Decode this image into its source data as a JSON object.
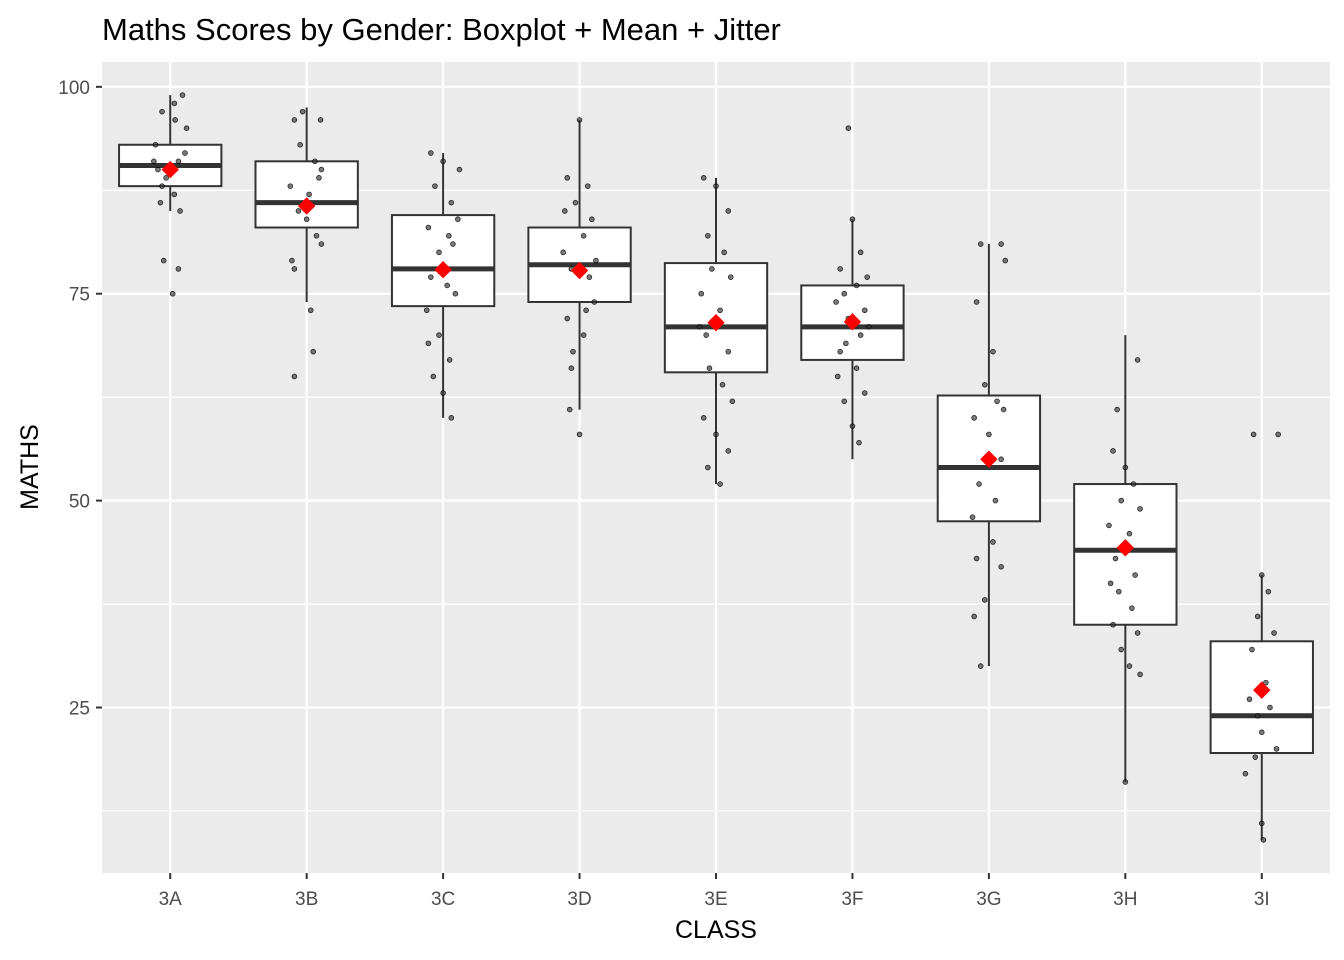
{
  "chart_data": {
    "type": "boxplot",
    "title": "Maths Scores by Gender: Boxplot + Mean + Jitter",
    "xlabel": "CLASS",
    "ylabel": "MATHS",
    "ylim": [
      5,
      103
    ],
    "yticks": [
      25,
      50,
      75,
      100
    ],
    "grid": true,
    "categories": [
      "3A",
      "3B",
      "3C",
      "3D",
      "3E",
      "3F",
      "3G",
      "3H",
      "3I"
    ],
    "boxes": [
      {
        "category": "3A",
        "min": 85,
        "q1": 88,
        "median": 90.5,
        "q3": 93,
        "max": 99,
        "mean": 90
      },
      {
        "category": "3B",
        "min": 74,
        "q1": 83,
        "median": 86,
        "q3": 91,
        "max": 97.5,
        "mean": 85.6
      },
      {
        "category": "3C",
        "min": 60,
        "q1": 73.5,
        "median": 78,
        "q3": 84.5,
        "max": 92,
        "mean": 77.9
      },
      {
        "category": "3D",
        "min": 61,
        "q1": 74,
        "median": 78.5,
        "q3": 83,
        "max": 96,
        "mean": 77.8
      },
      {
        "category": "3E",
        "min": 52,
        "q1": 65.5,
        "median": 71,
        "q3": 78.7,
        "max": 89,
        "mean": 71.5
      },
      {
        "category": "3F",
        "min": 55,
        "q1": 67,
        "median": 71,
        "q3": 76,
        "max": 84,
        "mean": 71.6
      },
      {
        "category": "3G",
        "min": 30,
        "q1": 47.5,
        "median": 54,
        "q3": 62.7,
        "max": 81,
        "mean": 55
      },
      {
        "category": "3H",
        "min": 16,
        "q1": 35,
        "median": 44,
        "q3": 52,
        "max": 70,
        "mean": 44.3
      },
      {
        "category": "3I",
        "min": 9,
        "q1": 19.5,
        "median": 24,
        "q3": 33,
        "max": 41,
        "mean": 27.1
      }
    ],
    "jitter_points": [
      {
        "category": "3A",
        "values": [
          [
            -0.1,
            97
          ],
          [
            0.05,
            98
          ],
          [
            0.15,
            99
          ],
          [
            -0.2,
            91
          ],
          [
            -0.15,
            90
          ],
          [
            -0.05,
            89
          ],
          [
            0.1,
            91
          ],
          [
            0.2,
            95
          ],
          [
            -0.1,
            88
          ],
          [
            0.05,
            87
          ],
          [
            0.12,
            85
          ],
          [
            -0.08,
            79
          ],
          [
            0.1,
            78
          ],
          [
            0.03,
            75
          ],
          [
            -0.12,
            86
          ],
          [
            0.18,
            92
          ],
          [
            -0.18,
            93
          ],
          [
            0.06,
            96
          ]
        ]
      },
      {
        "category": "3B",
        "values": [
          [
            -0.15,
            96
          ],
          [
            -0.05,
            97
          ],
          [
            0.1,
            91
          ],
          [
            0.15,
            89
          ],
          [
            -0.2,
            88
          ],
          [
            -0.1,
            85
          ],
          [
            0.0,
            84
          ],
          [
            0.12,
            82
          ],
          [
            0.18,
            81
          ],
          [
            -0.18,
            79
          ],
          [
            -0.15,
            78
          ],
          [
            0.05,
            73
          ],
          [
            0.08,
            68
          ],
          [
            -0.15,
            65
          ],
          [
            0.18,
            90
          ],
          [
            -0.08,
            93
          ],
          [
            0.03,
            87
          ],
          [
            0.17,
            96
          ]
        ]
      },
      {
        "category": "3C",
        "values": [
          [
            -0.15,
            92
          ],
          [
            0.0,
            91
          ],
          [
            0.2,
            90
          ],
          [
            -0.1,
            88
          ],
          [
            0.1,
            86
          ],
          [
            -0.18,
            83
          ],
          [
            -0.05,
            80
          ],
          [
            0.12,
            81
          ],
          [
            -0.15,
            77
          ],
          [
            0.05,
            76
          ],
          [
            0.15,
            75
          ],
          [
            -0.2,
            73
          ],
          [
            0.08,
            67
          ],
          [
            -0.12,
            65
          ],
          [
            0.0,
            63
          ],
          [
            0.1,
            60
          ],
          [
            -0.05,
            70
          ],
          [
            0.18,
            84
          ],
          [
            -0.18,
            69
          ],
          [
            0.07,
            82
          ]
        ]
      },
      {
        "category": "3D",
        "values": [
          [
            0.0,
            96
          ],
          [
            -0.15,
            89
          ],
          [
            0.1,
            88
          ],
          [
            -0.05,
            86
          ],
          [
            0.15,
            84
          ],
          [
            0.05,
            82
          ],
          [
            -0.2,
            80
          ],
          [
            -0.1,
            78
          ],
          [
            0.12,
            77
          ],
          [
            0.18,
            74
          ],
          [
            -0.15,
            72
          ],
          [
            0.05,
            70
          ],
          [
            -0.08,
            68
          ],
          [
            -0.1,
            66
          ],
          [
            -0.12,
            61
          ],
          [
            0.0,
            58
          ],
          [
            0.2,
            79
          ],
          [
            -0.18,
            85
          ],
          [
            0.08,
            73
          ]
        ]
      },
      {
        "category": "3E",
        "values": [
          [
            -0.15,
            89
          ],
          [
            0.0,
            88
          ],
          [
            0.15,
            85
          ],
          [
            -0.1,
            82
          ],
          [
            0.1,
            80
          ],
          [
            -0.05,
            78
          ],
          [
            0.18,
            77
          ],
          [
            -0.18,
            75
          ],
          [
            0.05,
            73
          ],
          [
            -0.12,
            70
          ],
          [
            0.15,
            68
          ],
          [
            -0.08,
            66
          ],
          [
            0.08,
            64
          ],
          [
            -0.15,
            60
          ],
          [
            0.0,
            58
          ],
          [
            0.15,
            56
          ],
          [
            -0.1,
            54
          ],
          [
            0.05,
            52
          ],
          [
            0.2,
            62
          ],
          [
            -0.2,
            71
          ]
        ]
      },
      {
        "category": "3F",
        "values": [
          [
            -0.05,
            95
          ],
          [
            0.0,
            84
          ],
          [
            0.1,
            80
          ],
          [
            -0.15,
            78
          ],
          [
            0.18,
            77
          ],
          [
            0.05,
            76
          ],
          [
            -0.1,
            75
          ],
          [
            -0.2,
            74
          ],
          [
            0.15,
            73
          ],
          [
            -0.05,
            72
          ],
          [
            0.1,
            70
          ],
          [
            -0.15,
            68
          ],
          [
            0.05,
            66
          ],
          [
            -0.18,
            65
          ],
          [
            0.15,
            63
          ],
          [
            -0.1,
            62
          ],
          [
            0.0,
            59
          ],
          [
            0.08,
            57
          ],
          [
            0.2,
            71
          ],
          [
            -0.08,
            69
          ]
        ]
      },
      {
        "category": "3G",
        "values": [
          [
            -0.1,
            81
          ],
          [
            0.15,
            81
          ],
          [
            0.2,
            79
          ],
          [
            -0.15,
            74
          ],
          [
            0.05,
            68
          ],
          [
            -0.05,
            64
          ],
          [
            0.1,
            62
          ],
          [
            -0.18,
            60
          ],
          [
            0.0,
            58
          ],
          [
            0.15,
            55
          ],
          [
            -0.12,
            52
          ],
          [
            0.08,
            50
          ],
          [
            -0.2,
            48
          ],
          [
            0.05,
            45
          ],
          [
            -0.15,
            43
          ],
          [
            0.15,
            42
          ],
          [
            -0.05,
            38
          ],
          [
            -0.18,
            36
          ],
          [
            -0.1,
            30
          ],
          [
            0.18,
            61
          ]
        ]
      },
      {
        "category": "3H",
        "values": [
          [
            -0.1,
            61
          ],
          [
            0.15,
            67
          ],
          [
            -0.15,
            56
          ],
          [
            0.0,
            54
          ],
          [
            0.1,
            52
          ],
          [
            -0.05,
            50
          ],
          [
            0.18,
            49
          ],
          [
            -0.2,
            47
          ],
          [
            0.05,
            46
          ],
          [
            -0.12,
            43
          ],
          [
            0.12,
            41
          ],
          [
            -0.08,
            39
          ],
          [
            0.08,
            37
          ],
          [
            -0.15,
            35
          ],
          [
            0.15,
            34
          ],
          [
            -0.05,
            32
          ],
          [
            0.05,
            30
          ],
          [
            0.0,
            16
          ],
          [
            0.18,
            29
          ],
          [
            -0.18,
            40
          ]
        ]
      },
      {
        "category": "3I",
        "values": [
          [
            -0.1,
            58
          ],
          [
            0.2,
            58
          ],
          [
            0.0,
            41
          ],
          [
            0.08,
            39
          ],
          [
            -0.05,
            36
          ],
          [
            0.15,
            34
          ],
          [
            -0.12,
            32
          ],
          [
            0.05,
            28
          ],
          [
            -0.15,
            26
          ],
          [
            0.1,
            25
          ],
          [
            -0.05,
            24
          ],
          [
            0.0,
            22
          ],
          [
            0.18,
            20
          ],
          [
            -0.08,
            19
          ],
          [
            -0.2,
            17
          ],
          [
            0.0,
            11
          ],
          [
            0.02,
            9
          ]
        ]
      }
    ],
    "colors": {
      "panel_bg": "#ebebeb",
      "grid": "#ffffff",
      "box_fill": "#ffffff",
      "box_line": "#333333",
      "point": "#333333",
      "mean_marker": "#ff0000"
    }
  }
}
